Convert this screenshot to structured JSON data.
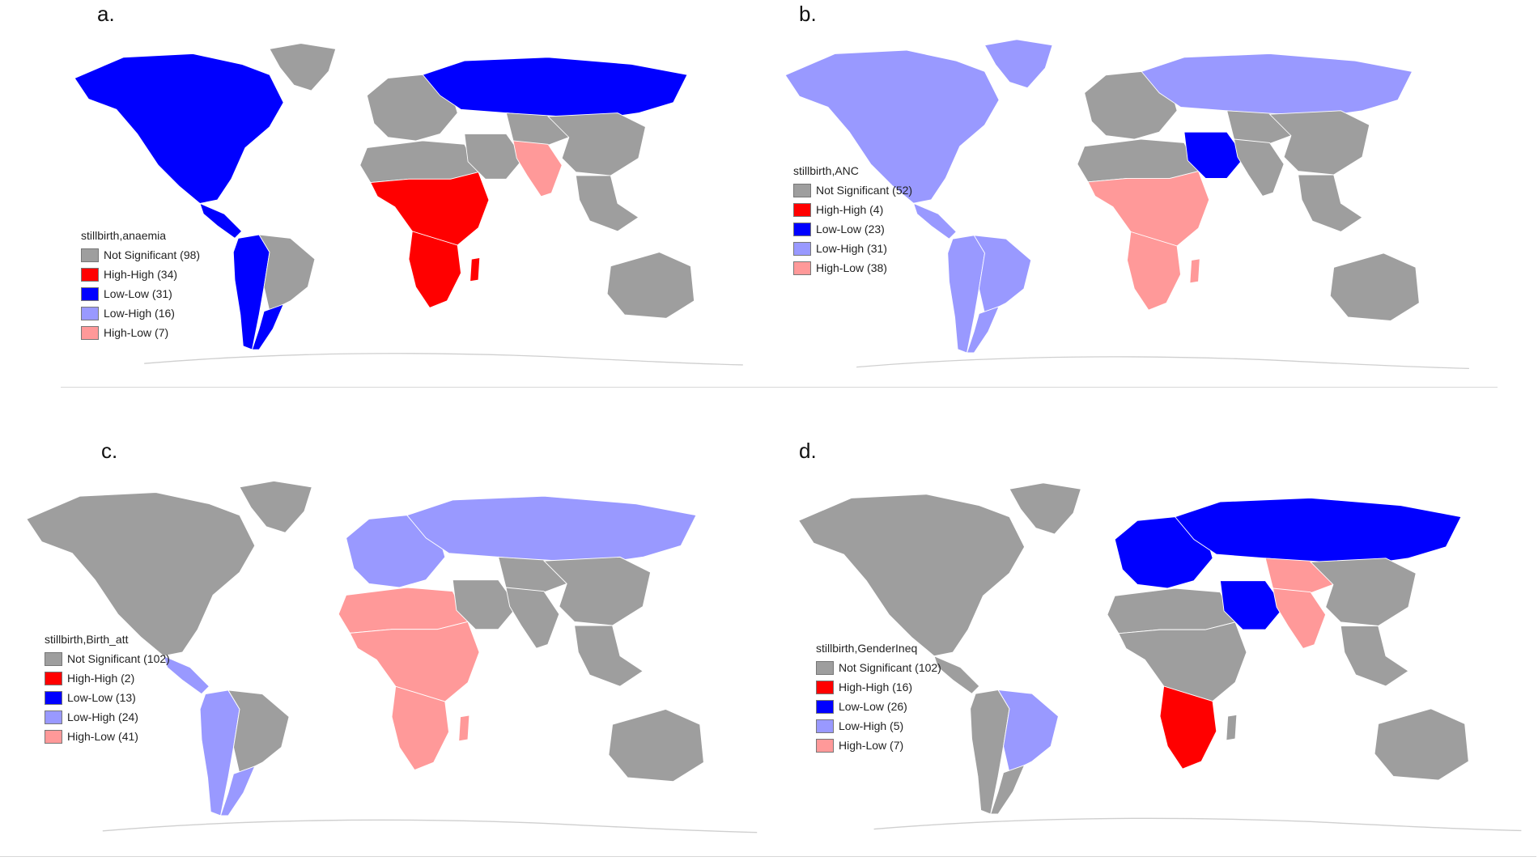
{
  "categories": {
    "ns": {
      "label": "Not Significant",
      "color": "#9e9e9e"
    },
    "hh": {
      "label": "High-High",
      "color": "#ff0000"
    },
    "ll": {
      "label": "Low-Low",
      "color": "#0000ff"
    },
    "lh": {
      "label": "Low-High",
      "color": "#9999ff"
    },
    "hl": {
      "label": "High-Low",
      "color": "#ff9999"
    }
  },
  "panels": [
    {
      "letter": "a.",
      "legend_title": "stillbirth,anaemia",
      "legend": [
        {
          "label": "Not Significant (98)",
          "color": "#9e9e9e"
        },
        {
          "label": "High-High (34)",
          "color": "#ff0000"
        },
        {
          "label": "Low-Low (31)",
          "color": "#0000ff"
        },
        {
          "label": "Low-High (16)",
          "color": "#9999ff"
        },
        {
          "label": "High-Low (7)",
          "color": "#ff9999"
        }
      ],
      "regions": {
        "north-america": "ll",
        "greenland": "ns",
        "central-america": "ll",
        "south-america-west": "ll",
        "south-america-east": "ns",
        "south-america-south": "ll",
        "europe": "ns",
        "russia": "ll",
        "north-africa": "ns",
        "sub-saharan-africa": "hh",
        "southern-africa": "hh",
        "madagascar": "hh",
        "middle-east": "ns",
        "central-asia": "ns",
        "south-asia": "hl",
        "china": "ns",
        "southeast-asia": "ns",
        "australia": "ns"
      }
    },
    {
      "letter": "b.",
      "legend_title": "stillbirth,ANC",
      "legend": [
        {
          "label": "Not Significant (52)",
          "color": "#9e9e9e"
        },
        {
          "label": "High-High (4)",
          "color": "#ff0000"
        },
        {
          "label": "Low-Low (23)",
          "color": "#0000ff"
        },
        {
          "label": "Low-High (31)",
          "color": "#9999ff"
        },
        {
          "label": "High-Low (38)",
          "color": "#ff9999"
        }
      ],
      "regions": {
        "north-america": "lh",
        "greenland": "lh",
        "central-america": "lh",
        "south-america-west": "lh",
        "south-america-east": "lh",
        "south-america-south": "lh",
        "europe": "ns",
        "russia": "lh",
        "north-africa": "ns",
        "sub-saharan-africa": "hl",
        "southern-africa": "hl",
        "madagascar": "hl",
        "middle-east": "ll",
        "central-asia": "ns",
        "south-asia": "ns",
        "china": "ns",
        "southeast-asia": "ns",
        "australia": "ns"
      }
    },
    {
      "letter": "c.",
      "legend_title": "stillbirth,Birth_att",
      "legend": [
        {
          "label": "Not Significant (102)",
          "color": "#9e9e9e"
        },
        {
          "label": "High-High (2)",
          "color": "#ff0000"
        },
        {
          "label": "Low-Low (13)",
          "color": "#0000ff"
        },
        {
          "label": "Low-High (24)",
          "color": "#9999ff"
        },
        {
          "label": "High-Low (41)",
          "color": "#ff9999"
        }
      ],
      "regions": {
        "north-america": "ns",
        "greenland": "ns",
        "central-america": "lh",
        "south-america-west": "lh",
        "south-america-east": "ns",
        "south-america-south": "lh",
        "europe": "lh",
        "russia": "lh",
        "north-africa": "hl",
        "sub-saharan-africa": "hl",
        "southern-africa": "hl",
        "madagascar": "hl",
        "middle-east": "ns",
        "central-asia": "ns",
        "south-asia": "ns",
        "china": "ns",
        "southeast-asia": "ns",
        "australia": "ns"
      }
    },
    {
      "letter": "d.",
      "legend_title": "stillbirth,GenderIneq",
      "legend": [
        {
          "label": "Not Significant (102)",
          "color": "#9e9e9e"
        },
        {
          "label": "High-High (16)",
          "color": "#ff0000"
        },
        {
          "label": "Low-Low (26)",
          "color": "#0000ff"
        },
        {
          "label": "Low-High (5)",
          "color": "#9999ff"
        },
        {
          "label": "High-Low (7)",
          "color": "#ff9999"
        }
      ],
      "regions": {
        "north-america": "ns",
        "greenland": "ns",
        "central-america": "ns",
        "south-america-west": "ns",
        "south-america-east": "lh",
        "south-america-south": "ns",
        "europe": "ll",
        "russia": "ll",
        "north-africa": "ns",
        "sub-saharan-africa": "ns",
        "southern-africa": "hh",
        "madagascar": "ns",
        "middle-east": "ll",
        "central-asia": "hl",
        "south-asia": "hl",
        "china": "ns",
        "southeast-asia": "ns",
        "australia": "ns"
      }
    }
  ]
}
